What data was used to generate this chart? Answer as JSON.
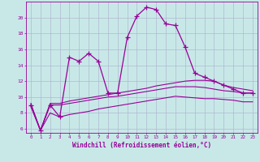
{
  "xlabel": "Windchill (Refroidissement éolien,°C)",
  "background_color": "#c8e8e8",
  "grid_color": "#b0b8d0",
  "line_color": "#990099",
  "x_hours": [
    0,
    1,
    2,
    3,
    4,
    5,
    6,
    7,
    8,
    9,
    10,
    11,
    12,
    13,
    14,
    15,
    16,
    17,
    18,
    19,
    20,
    21,
    22,
    23
  ],
  "main_line": [
    9.0,
    5.8,
    9.0,
    7.5,
    15.0,
    14.5,
    15.5,
    14.5,
    10.5,
    10.5,
    17.5,
    20.2,
    21.3,
    21.0,
    19.2,
    19.0,
    16.3,
    13.0,
    12.5,
    12.0,
    11.5,
    11.0,
    10.5,
    10.5
  ],
  "upper_line": [
    9.2,
    5.8,
    9.2,
    9.2,
    9.5,
    9.7,
    9.9,
    10.1,
    10.3,
    10.5,
    10.7,
    10.9,
    11.1,
    11.4,
    11.6,
    11.8,
    12.0,
    12.1,
    12.1,
    12.0,
    11.5,
    11.2,
    11.0,
    10.8
  ],
  "mid_line": [
    9.0,
    5.8,
    9.0,
    9.0,
    9.2,
    9.4,
    9.6,
    9.8,
    10.0,
    10.1,
    10.3,
    10.5,
    10.7,
    10.9,
    11.1,
    11.3,
    11.3,
    11.3,
    11.2,
    11.0,
    10.8,
    10.7,
    10.5,
    10.5
  ],
  "lower_line": [
    8.8,
    5.8,
    8.0,
    7.5,
    7.8,
    8.0,
    8.2,
    8.5,
    8.7,
    8.9,
    9.1,
    9.3,
    9.5,
    9.7,
    9.9,
    10.1,
    10.0,
    9.9,
    9.8,
    9.8,
    9.7,
    9.6,
    9.4,
    9.4
  ],
  "ylim": [
    5.5,
    22.0
  ],
  "yticks": [
    6,
    8,
    10,
    12,
    14,
    16,
    18,
    20
  ],
  "xlim": [
    -0.5,
    23.5
  ]
}
